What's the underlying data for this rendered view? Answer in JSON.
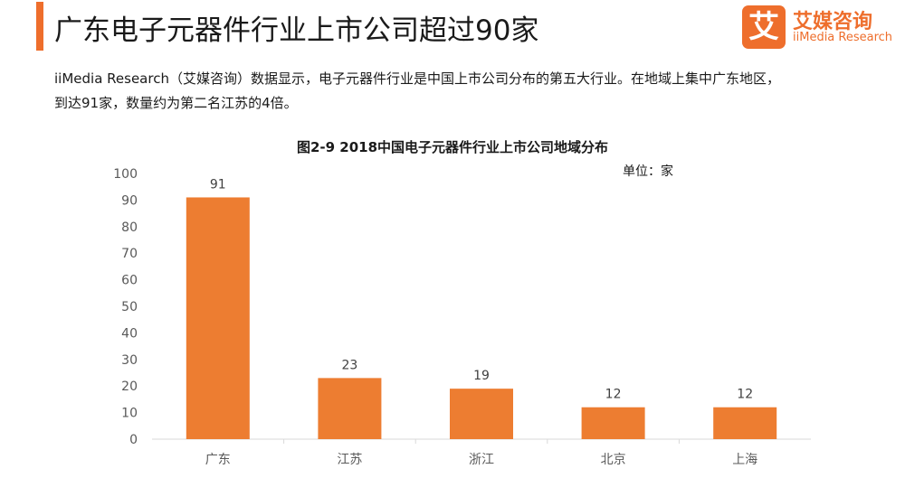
{
  "header": {
    "title": "广东电子元器件行业上市公司超过90家"
  },
  "logo": {
    "mark": "艾",
    "name_cn": "艾媒咨询",
    "name_en": "iiMedia Research"
  },
  "paragraph": {
    "line1": "iiMedia Research（艾媒咨询）数据显示，电子元器件行业是中国上市公司分布的第五大行业。在地域上集中广东地区，",
    "line2": "到达91家，数量约为第二名江苏的4倍。"
  },
  "colors": {
    "accent": "#ee6e2c",
    "bar": "#ed7d31",
    "axis_text": "#595959"
  },
  "chart_data": {
    "type": "bar",
    "title": "图2-9 2018中国电子元器件行业上市公司地域分布",
    "unit": "单位：家",
    "categories": [
      "广东",
      "江苏",
      "浙江",
      "北京",
      "上海"
    ],
    "values": [
      91,
      23,
      19,
      12,
      12
    ],
    "ylim": [
      0,
      100
    ],
    "yticks": [
      0,
      10,
      20,
      30,
      40,
      50,
      60,
      70,
      80,
      90,
      100
    ],
    "grid": false,
    "legend": "none",
    "data_labels": true
  }
}
